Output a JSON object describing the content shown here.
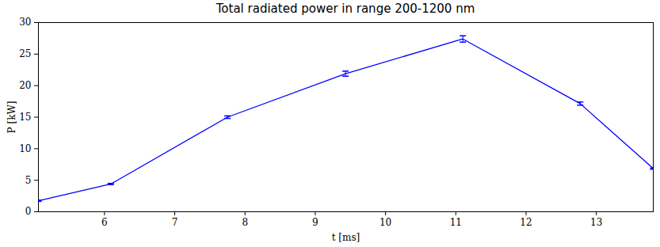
{
  "chart_data": {
    "type": "line",
    "title": "Total radiated power in range 200-1200 nm",
    "x_label": "t [ms]",
    "y_label": "P [kW]",
    "x": [
      5.06,
      6.09,
      7.75,
      9.43,
      11.1,
      12.77,
      13.81
    ],
    "series": [
      {
        "name": "P",
        "color": "#0000ff",
        "values": [
          1.75,
          4.4,
          15.0,
          21.9,
          27.4,
          17.15,
          6.85
        ],
        "errors": [
          0.1,
          0.1,
          0.2,
          0.4,
          0.5,
          0.25,
          0.1
        ]
      }
    ],
    "xlim": [
      5.06,
      13.81
    ],
    "xticks": [
      6,
      7,
      8,
      9,
      10,
      11,
      12,
      13
    ],
    "ylim": [
      0,
      30
    ],
    "yticks": [
      0,
      5,
      10,
      15,
      20,
      25,
      30
    ],
    "grid": false
  }
}
